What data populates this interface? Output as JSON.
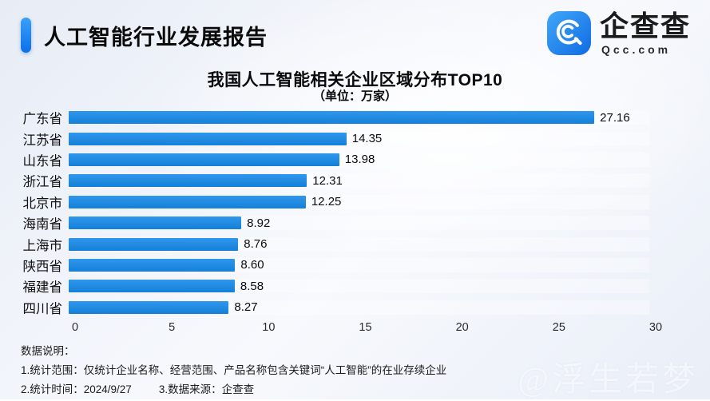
{
  "header": {
    "title": "人工智能行业发展报告"
  },
  "logo": {
    "name": "企查查",
    "subtext": "Qcc.com",
    "brand_color": "#1d86ee"
  },
  "chart_data": {
    "type": "bar",
    "orientation": "horizontal",
    "title": "我国人工智能相关企业区域分布TOP10",
    "subtitle": "（单位：万家）",
    "categories": [
      "广东省",
      "江苏省",
      "山东省",
      "浙江省",
      "北京市",
      "海南省",
      "上海市",
      "陕西省",
      "福建省",
      "四川省"
    ],
    "values": [
      27.16,
      14.35,
      13.98,
      12.31,
      12.25,
      8.92,
      8.76,
      8.6,
      8.58,
      8.27
    ],
    "value_labels": [
      "27.16",
      "14.35",
      "13.98",
      "12.31",
      "12.25",
      "8.92",
      "8.76",
      "8.60",
      "8.58",
      "8.27"
    ],
    "xlim": [
      0,
      30
    ],
    "x_ticks": [
      0,
      5,
      10,
      15,
      20,
      25,
      30
    ],
    "bar_color": "#1b85e0",
    "grid": false,
    "legend": false,
    "value_labels_shown": true
  },
  "footer": {
    "heading": "数据说明：",
    "line1": "1.统计范围：仅统计企业名称、经营范围、产品名称包含关键词“人工智能”的在业存续企业",
    "line2a": "2.统计时间：2024/9/27",
    "line2b": "3.数据来源：企查查"
  },
  "watermark": {
    "text": "@浮生若梦"
  }
}
